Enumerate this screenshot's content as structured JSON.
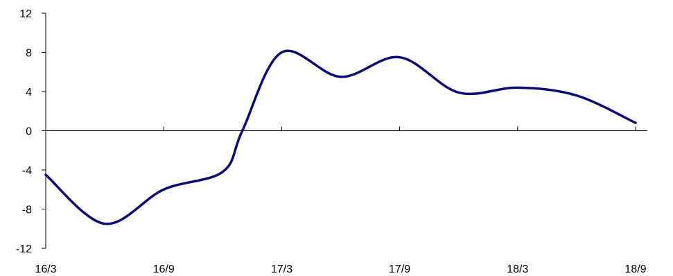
{
  "colors": {
    "line": "#0a0a78",
    "axis": "#000000",
    "background": "#ffffff"
  },
  "chart_data": {
    "type": "line",
    "title": "",
    "xlabel": "",
    "ylabel": "",
    "ylim": [
      -12,
      12
    ],
    "yticks": [
      12,
      8,
      4,
      0,
      -4,
      -8,
      -12
    ],
    "ytick_labels": [
      "12",
      "8",
      "4",
      "0",
      "-4",
      "-8",
      "-12"
    ],
    "xticks": [
      "16/3",
      "16/9",
      "17/3",
      "17/9",
      "18/3",
      "18/9"
    ],
    "grid": false,
    "legend": "none",
    "series": [
      {
        "x": [
          "16/3",
          "16/6",
          "16/9",
          "16/12",
          "17/1",
          "17/3",
          "17/6",
          "17/9",
          "17/12",
          "18/3",
          "18/6",
          "18/9"
        ],
        "values": [
          -4.5,
          -9.5,
          -6,
          -4.2,
          0,
          8,
          5.5,
          7.5,
          3.9,
          4.4,
          3.6,
          0.8
        ]
      }
    ]
  }
}
